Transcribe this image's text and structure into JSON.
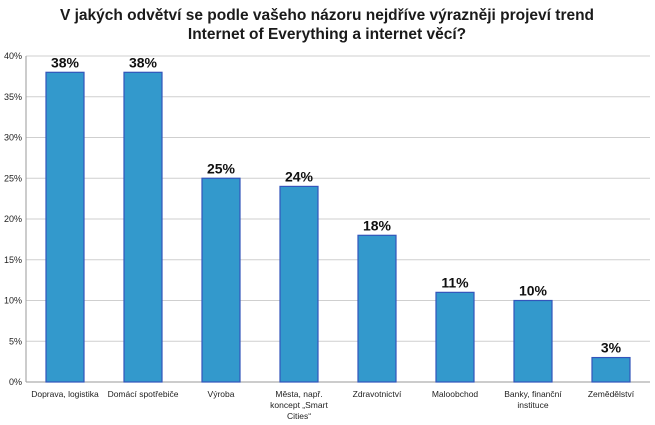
{
  "chart_data": {
    "type": "bar",
    "title_lines": [
      "V jakých odvětví se podle vašeho názoru nejdříve výrazněji projeví trend",
      "Internet of Everything a internet věcí?"
    ],
    "categories": [
      [
        "Doprava, logistika"
      ],
      [
        "Domácí spotřebiče"
      ],
      [
        "Výroba"
      ],
      [
        "Města, např.",
        "koncept „Smart",
        "Cities“"
      ],
      [
        "Zdravotnictví"
      ],
      [
        "Maloobchod"
      ],
      [
        "Banky, finanční",
        "instituce"
      ],
      [
        "Zemědělství"
      ]
    ],
    "values": [
      38,
      38,
      25,
      24,
      18,
      11,
      10,
      3
    ],
    "data_labels": [
      "38%",
      "38%",
      "25%",
      "24%",
      "18%",
      "11%",
      "10%",
      "3%"
    ],
    "ylim": [
      0,
      40
    ],
    "yticks": [
      "0%",
      "5%",
      "10%",
      "15%",
      "20%",
      "25%",
      "30%",
      "35%",
      "40%"
    ],
    "xlabel": "",
    "ylabel": "",
    "grid": true,
    "legend": "none",
    "bar_color": "#3399cc",
    "bar_edge_color": "#3355bb"
  }
}
